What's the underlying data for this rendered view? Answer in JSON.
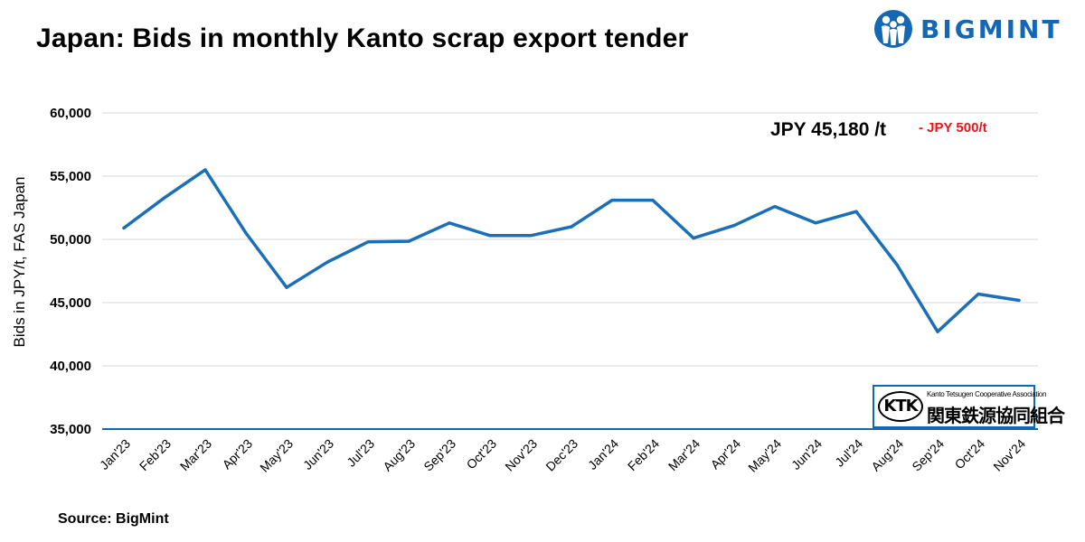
{
  "header": {
    "title": "Japan: Bids in monthly Kanto scrap export tender",
    "brand": "BIGMINT"
  },
  "colors": {
    "line": "#1a6fb8",
    "brand": "#1467b3",
    "change": "#e8141c",
    "grid": "#d9d9d9",
    "axis": "#1467b3"
  },
  "annotation": {
    "price": "JPY 45,180 /t",
    "change": "- JPY 500/t"
  },
  "ktk_logo": {
    "mark": "KTK",
    "english": "Kanto Tetsugen Cooperative Association",
    "japanese": "関東鉄源協同組合"
  },
  "footer": {
    "source": "Source: BigMint"
  },
  "chart_data": {
    "type": "line",
    "title": "Japan: Bids in monthly Kanto scrap export tender",
    "xlabel": "",
    "ylabel": "Bids in JPY/t, FAS Japan",
    "ylim": [
      35000,
      60000
    ],
    "yticks": [
      35000,
      40000,
      45000,
      50000,
      55000,
      60000
    ],
    "ytick_labels": [
      "35,000",
      "40,000",
      "45,000",
      "50,000",
      "55,000",
      "60,000"
    ],
    "grid": true,
    "categories": [
      "Jan'23",
      "Feb'23",
      "Mar'23",
      "Apr'23",
      "May'23",
      "Jun'23",
      "Jul'23",
      "Aug'23",
      "Sep'23",
      "Oct'23",
      "Nov'23",
      "Dec'23",
      "Jan'24",
      "Feb'24",
      "Mar'24",
      "Apr'24",
      "May'24",
      "Jun'24",
      "Jul'24",
      "Aug'24",
      "Sep'24",
      "Oct'24",
      "Nov'24"
    ],
    "values": [
      50900,
      53300,
      55500,
      50500,
      46200,
      48200,
      49800,
      49850,
      51300,
      50300,
      50300,
      51000,
      53100,
      53100,
      50100,
      51100,
      52600,
      51300,
      52200,
      48000,
      42700,
      45680,
      45180
    ]
  }
}
